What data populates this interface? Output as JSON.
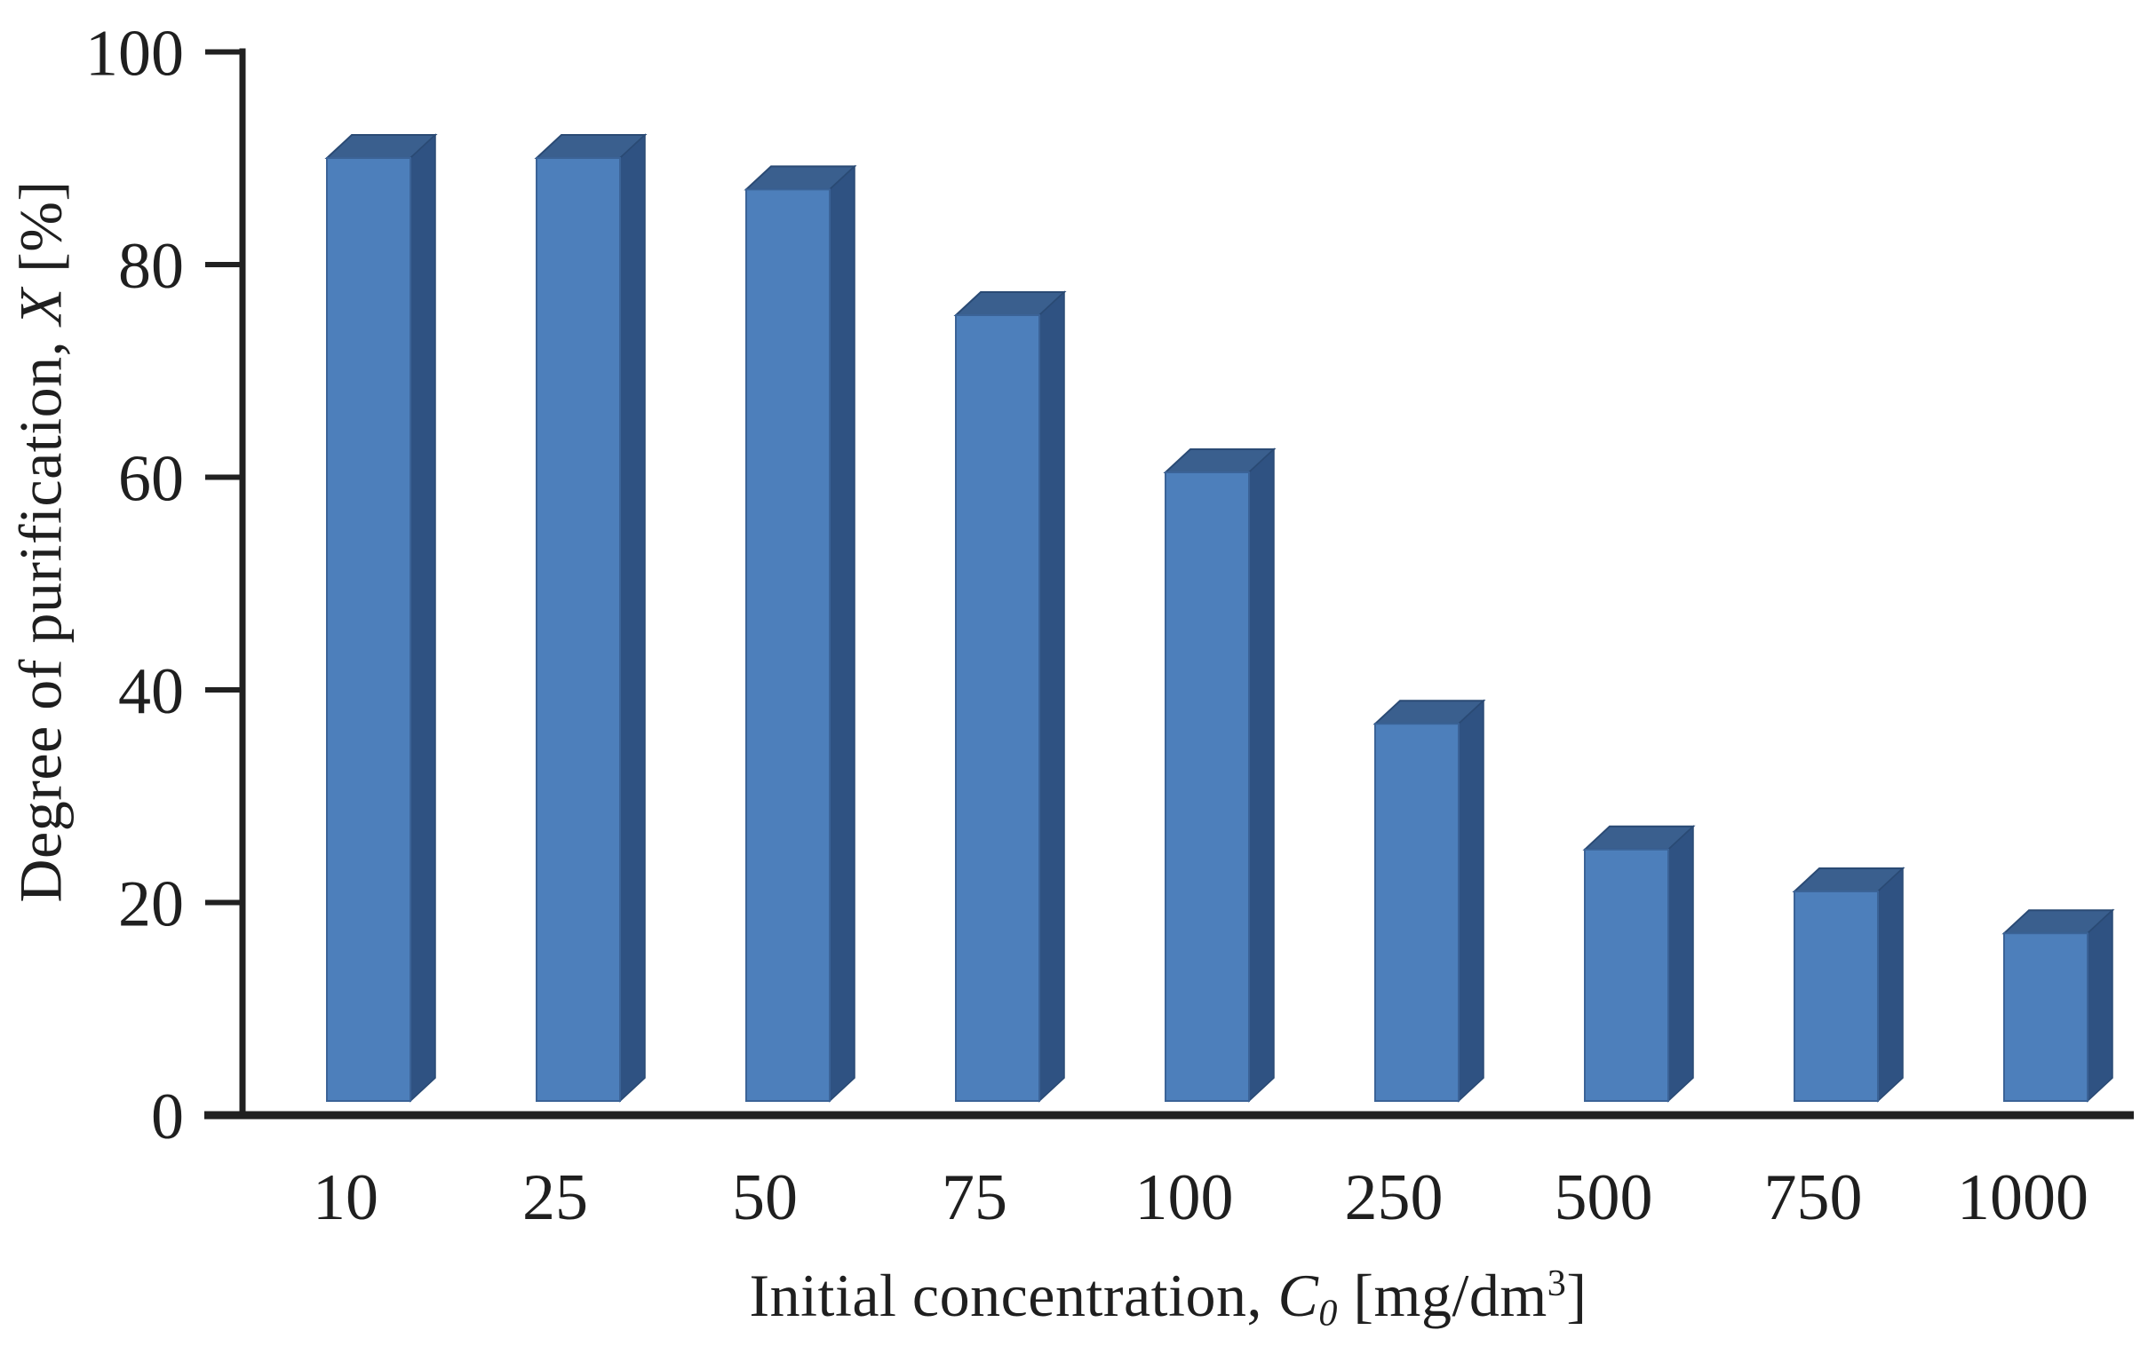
{
  "figure": {
    "background": "#ffffff"
  },
  "labels": {
    "y_title": {
      "prefix": "Degree of purification, ",
      "variable": "X",
      "suffix": " [%]"
    },
    "x_title": {
      "prefix": "Initial concentration, ",
      "variable": "C",
      "subscript": "0",
      "mid": " [mg/dm",
      "superscript": "3",
      "close": "]"
    }
  },
  "chart_data": {
    "type": "bar",
    "style": "3d-column",
    "title": "",
    "xlabel": "Initial concentration, C0 [mg/dm3]",
    "ylabel": "Degree of purification, X [%]",
    "categories": [
      "10",
      "25",
      "50",
      "75",
      "100",
      "250",
      "500",
      "750",
      "1000"
    ],
    "values": [
      90,
      90,
      87,
      75,
      60,
      36,
      24,
      20,
      16
    ],
    "ylim": [
      0,
      100
    ],
    "yticks": [
      0,
      20,
      40,
      60,
      80,
      100
    ],
    "grid": false,
    "legend_position": "none",
    "colors": {
      "bar_front": "#4d7fbb",
      "bar_top": "#3a5f8e",
      "bar_side": "#2f5282",
      "bar_edge": "#2a4a74",
      "bar_front_edge": "#3b6397",
      "axis": "#212121",
      "text": "#1f1f1f"
    }
  }
}
